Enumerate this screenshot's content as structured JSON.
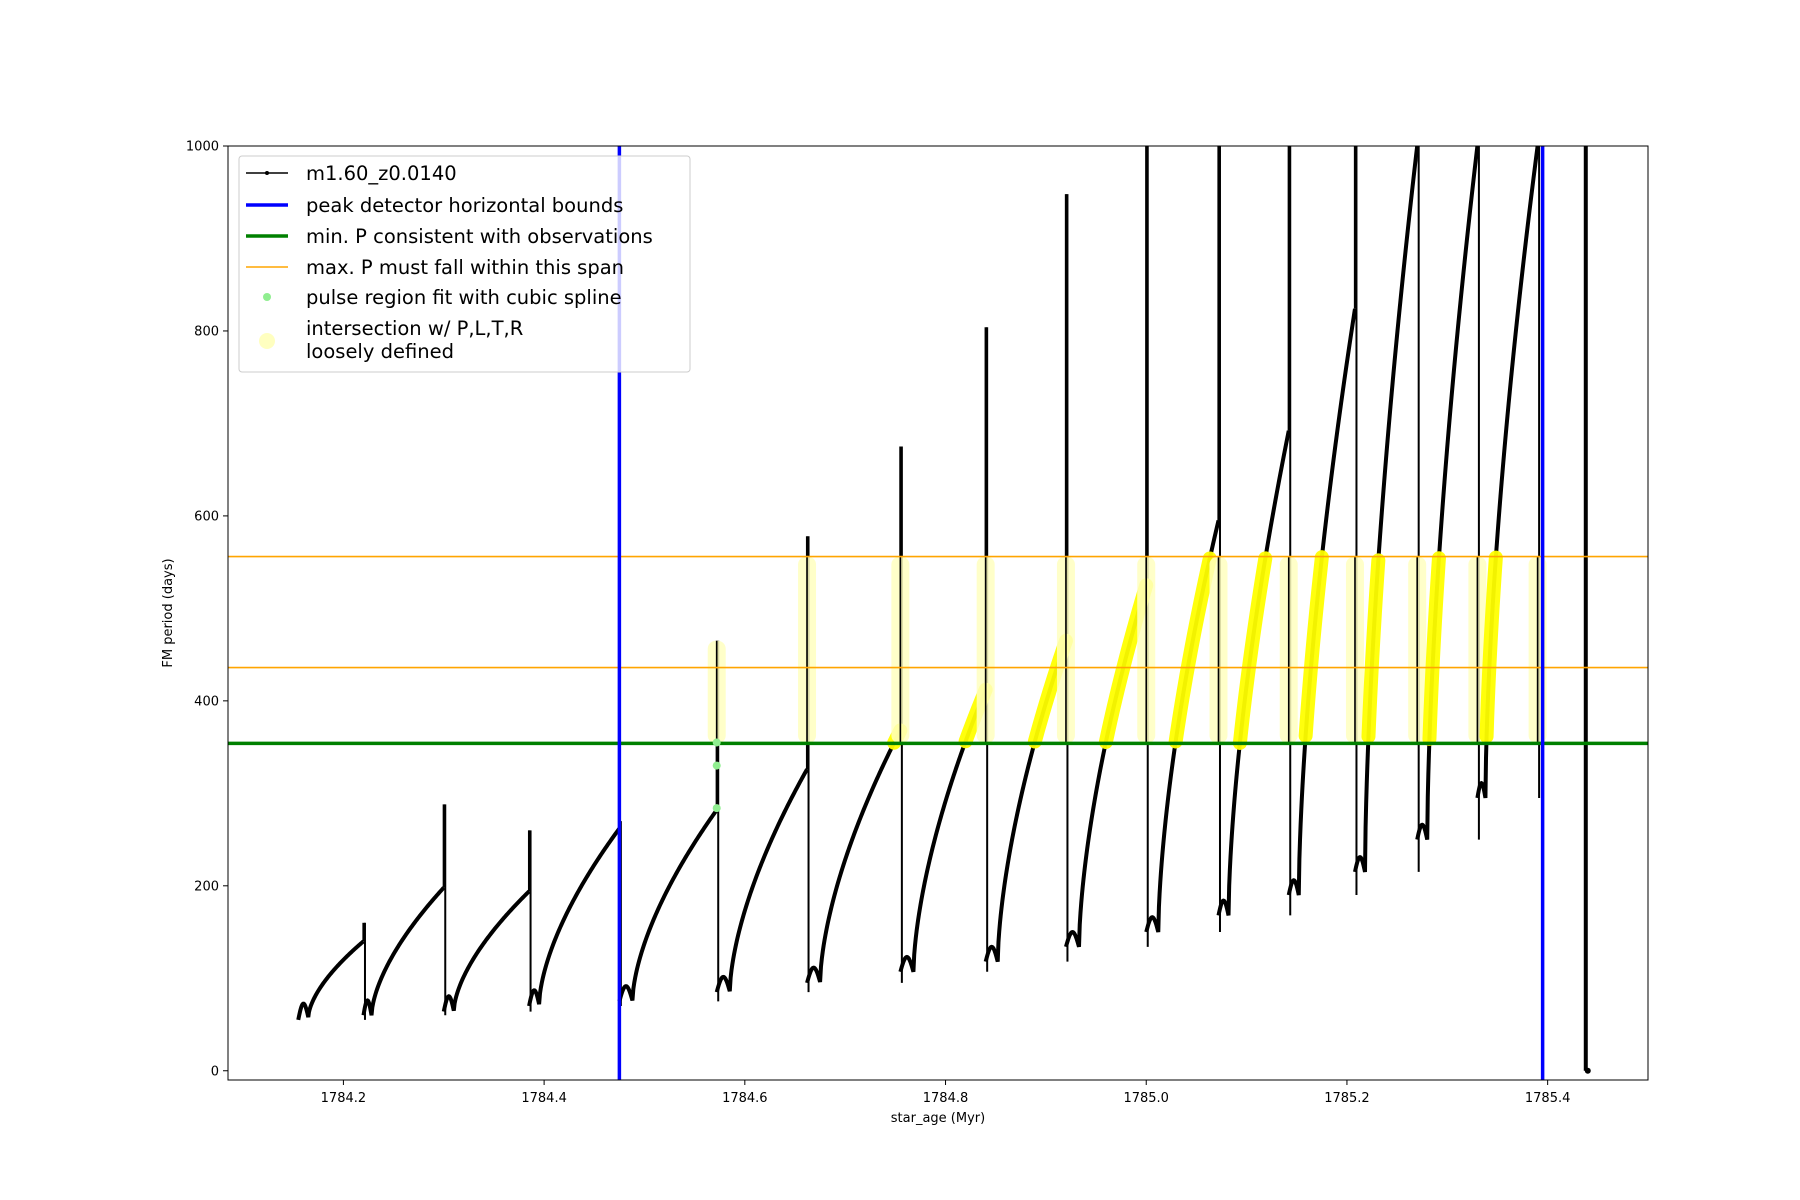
{
  "chart_data": {
    "type": "line",
    "xlabel": "star_age (Myr)",
    "ylabel": "FM period (days)",
    "xlim": [
      1784.085,
      1785.5
    ],
    "ylim": [
      -10,
      1000
    ],
    "x_ticks": [
      "1784.2",
      "1784.4",
      "1784.6",
      "1784.8",
      "1785.0",
      "1785.2",
      "1785.4"
    ],
    "y_ticks": [
      "0",
      "200",
      "400",
      "600",
      "800",
      "1000"
    ],
    "legend_position": "upper-left",
    "grid": false,
    "colors": {
      "model": "#000000",
      "bounds": "#0000ff",
      "min_p": "#008000",
      "max_p": "#ffa500",
      "spline": "#90ee90",
      "intersection": "#ffff00",
      "intersection_loose": "#ffffc0"
    },
    "series": [
      {
        "name": "m1.60_z0.0140",
        "kind": "pulse_train",
        "cycles": [
          {
            "t0": 1784.155,
            "t1": 1784.22,
            "p0": 55,
            "pend": 140,
            "spike": 160,
            "dip": 58,
            "dip_t": 1784.165
          },
          {
            "t0": 1784.22,
            "t1": 1784.3,
            "p0": 60,
            "pend": 198,
            "spike": 288,
            "dip": 60,
            "dip_t": 1784.228
          },
          {
            "t0": 1784.3,
            "t1": 1784.385,
            "p0": 64,
            "pend": 194,
            "spike": 260,
            "dip": 65,
            "dip_t": 1784.31
          },
          {
            "t0": 1784.385,
            "t1": 1784.475,
            "p0": 70,
            "pend": 262,
            "spike": 270,
            "dip": 72,
            "dip_t": 1784.395
          },
          {
            "t0": 1784.475,
            "t1": 1784.572,
            "p0": 75,
            "pend": 282,
            "spike": 465,
            "dip": 76,
            "dip_t": 1784.488
          },
          {
            "t0": 1784.572,
            "t1": 1784.662,
            "p0": 85,
            "pend": 326,
            "spike": 578,
            "dip": 86,
            "dip_t": 1784.585
          },
          {
            "t0": 1784.662,
            "t1": 1784.755,
            "p0": 95,
            "pend": 368,
            "spike": 675,
            "dip": 96,
            "dip_t": 1784.675
          },
          {
            "t0": 1784.755,
            "t1": 1784.84,
            "p0": 107,
            "pend": 412,
            "spike": 804,
            "dip": 107,
            "dip_t": 1784.768
          },
          {
            "t0": 1784.84,
            "t1": 1784.92,
            "p0": 118,
            "pend": 465,
            "spike": 948,
            "dip": 118,
            "dip_t": 1784.852
          },
          {
            "t0": 1784.92,
            "t1": 1785.0,
            "p0": 134,
            "pend": 525,
            "spike": 1000,
            "dip": 134,
            "dip_t": 1784.933
          },
          {
            "t0": 1785.0,
            "t1": 1785.072,
            "p0": 150,
            "pend": 595,
            "spike": 1000,
            "dip": 150,
            "dip_t": 1785.012
          },
          {
            "t0": 1785.072,
            "t1": 1785.142,
            "p0": 168,
            "pend": 692,
            "spike": 1000,
            "dip": 168,
            "dip_t": 1785.082
          },
          {
            "t0": 1785.142,
            "t1": 1785.208,
            "p0": 190,
            "pend": 824,
            "spike": 1000,
            "dip": 190,
            "dip_t": 1785.152
          },
          {
            "t0": 1785.208,
            "t1": 1785.27,
            "p0": 215,
            "pend": 1000,
            "spike": 1000,
            "dip": 215,
            "dip_t": 1785.218
          },
          {
            "t0": 1785.27,
            "t1": 1785.33,
            "p0": 250,
            "pend": 1000,
            "spike": 1000,
            "dip": 250,
            "dip_t": 1785.28
          },
          {
            "t0": 1785.33,
            "t1": 1785.39,
            "p0": 295,
            "pend": 1000,
            "spike": 1000,
            "dip": 295,
            "dip_t": 1785.338
          }
        ],
        "final_drop": {
          "x": 1785.438,
          "y_top": 1000,
          "y_bottom": 0
        }
      },
      {
        "name": "peak detector horizontal bounds",
        "kind": "vline",
        "x": [
          1784.475,
          1785.395
        ]
      },
      {
        "name": "min. P consistent with observations",
        "kind": "hline",
        "y": [
          354
        ]
      },
      {
        "name": "max. P must fall within this span",
        "kind": "hline",
        "y": [
          436,
          556
        ]
      },
      {
        "name": "pulse region fit with cubic spline",
        "kind": "points",
        "x": [
          1784.572,
          1784.572,
          1784.572
        ],
        "y": [
          284,
          330,
          355
        ]
      },
      {
        "name": "intersection w/ P,L,T,R\nloosely defined",
        "kind": "band",
        "y_range": [
          354,
          556
        ]
      }
    ]
  },
  "legend": {
    "items": [
      {
        "label": "m1.60_z0.0140"
      },
      {
        "label": "peak detector horizontal bounds"
      },
      {
        "label": "min. P consistent with observations"
      },
      {
        "label": "max. P must fall within this span"
      },
      {
        "label": "pulse region fit with cubic spline"
      },
      {
        "label_line1": "intersection w/ P,L,T,R",
        "label_line2": "loosely defined"
      }
    ]
  }
}
